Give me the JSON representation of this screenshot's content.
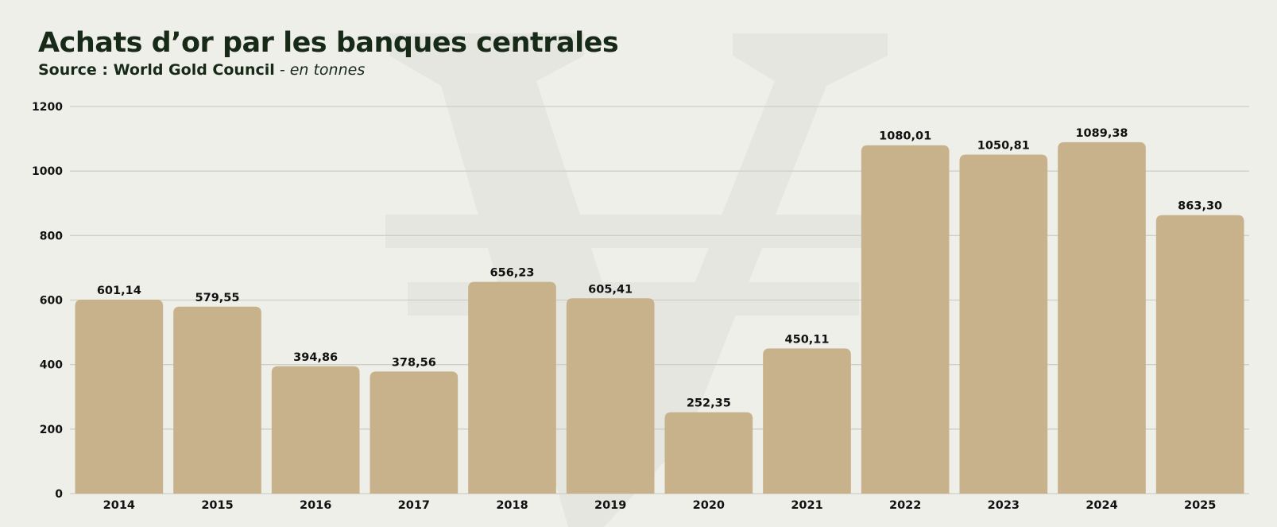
{
  "header": {
    "title": "Achats d’or par les banques centrales",
    "source": "Source : World Gold Council",
    "unit": "- en tonnes"
  },
  "watermark": {
    "icon": "yen-sign-icon",
    "color": "#e6e6e0"
  },
  "colors": {
    "bar": "#c8b28c",
    "grid": "#cfcfc8",
    "background": "#efefea",
    "text": "#172a17"
  },
  "chart_data": {
    "type": "bar",
    "title": "Achats d’or par les banques centrales",
    "subtitle": "Source : World Gold Council - en tonnes",
    "xlabel": "",
    "ylabel": "",
    "categories": [
      "2014",
      "2015",
      "2016",
      "2017",
      "2018",
      "2019",
      "2020",
      "2021",
      "2022",
      "2023",
      "2024",
      "2025"
    ],
    "values": [
      601.14,
      579.55,
      394.86,
      378.56,
      656.23,
      605.41,
      252.35,
      450.11,
      1080.01,
      1050.81,
      1089.38,
      863.3
    ],
    "value_labels": [
      "601,14",
      "579,55",
      "394,86",
      "378,56",
      "656,23",
      "605,41",
      "252,35",
      "450,11",
      "1080,01",
      "1050,81",
      "1089,38",
      "863,30"
    ],
    "yticks": [
      0,
      200,
      400,
      600,
      800,
      1000,
      1200
    ],
    "ylim": [
      0,
      1200
    ],
    "grid": true,
    "legend": "none"
  }
}
